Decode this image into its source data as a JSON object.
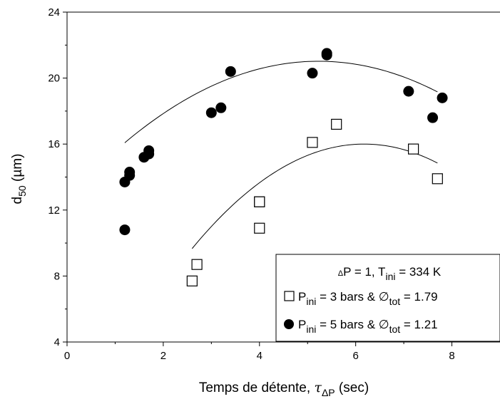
{
  "chart_data": {
    "type": "scatter",
    "xlabel": {
      "main": "Temps de détente, ",
      "tau": "τ",
      "delta": "ΔP",
      "unit": " (sec)"
    },
    "ylabel": {
      "d": "d",
      "sub": "50",
      "unit": " (µm)"
    },
    "xlim": [
      0,
      9
    ],
    "ylim": [
      4,
      24
    ],
    "x_ticks": [
      0,
      2,
      4,
      6,
      8
    ],
    "y_ticks": [
      4,
      8,
      12,
      16,
      20,
      24
    ],
    "grid": false,
    "legend": {
      "placement": "bottom-right",
      "header": {
        "delta": "Δ",
        "p_eq": "P = 1, T",
        "t_sub": "ini",
        "t_rest": " = 334 K"
      }
    },
    "series": [
      {
        "name": "P_ini = 3 bars & ∅_tot = 1.79",
        "legend_parts": {
          "p": "P",
          "p_sub": "ini",
          "mid": " = 3 bars & ",
          "phi": "∅",
          "phi_sub": "tot",
          "val": " = 1.79"
        },
        "marker": "open-square",
        "color": "#000000",
        "points": [
          [
            2.6,
            7.7
          ],
          [
            2.7,
            8.7
          ],
          [
            4.0,
            12.5
          ],
          [
            4.0,
            12.5
          ],
          [
            4.0,
            10.9
          ],
          [
            5.1,
            16.1
          ],
          [
            5.6,
            17.2
          ],
          [
            7.2,
            15.7
          ],
          [
            7.7,
            13.9
          ]
        ],
        "fit": {
          "kind": "quadratic",
          "a": -0.4955,
          "b": 6.1203,
          "c": -2.8994,
          "x_range": [
            2.6,
            7.7
          ]
        }
      },
      {
        "name": "P_ini = 5 bars & ∅_tot = 1.21",
        "legend_parts": {
          "p": "P",
          "p_sub": "ini",
          "mid": " = 5 bars & ",
          "phi": "∅",
          "phi_sub": "tot",
          "val": " = 1.21"
        },
        "marker": "filled-circle",
        "color": "#000000",
        "points": [
          [
            1.2,
            13.7
          ],
          [
            1.2,
            10.8
          ],
          [
            1.3,
            14.1
          ],
          [
            1.3,
            14.3
          ],
          [
            1.6,
            15.2
          ],
          [
            1.7,
            15.4
          ],
          [
            1.7,
            15.6
          ],
          [
            3.0,
            17.9
          ],
          [
            3.2,
            18.2
          ],
          [
            3.4,
            20.4
          ],
          [
            5.1,
            20.3
          ],
          [
            5.4,
            21.5
          ],
          [
            5.4,
            21.4
          ],
          [
            7.1,
            19.2
          ],
          [
            7.6,
            17.6
          ],
          [
            7.8,
            18.8
          ]
        ],
        "fit": {
          "kind": "quadratic",
          "a": -0.3043,
          "b": 3.1825,
          "c": 12.7,
          "x_range": [
            1.2,
            7.7
          ]
        }
      }
    ]
  }
}
